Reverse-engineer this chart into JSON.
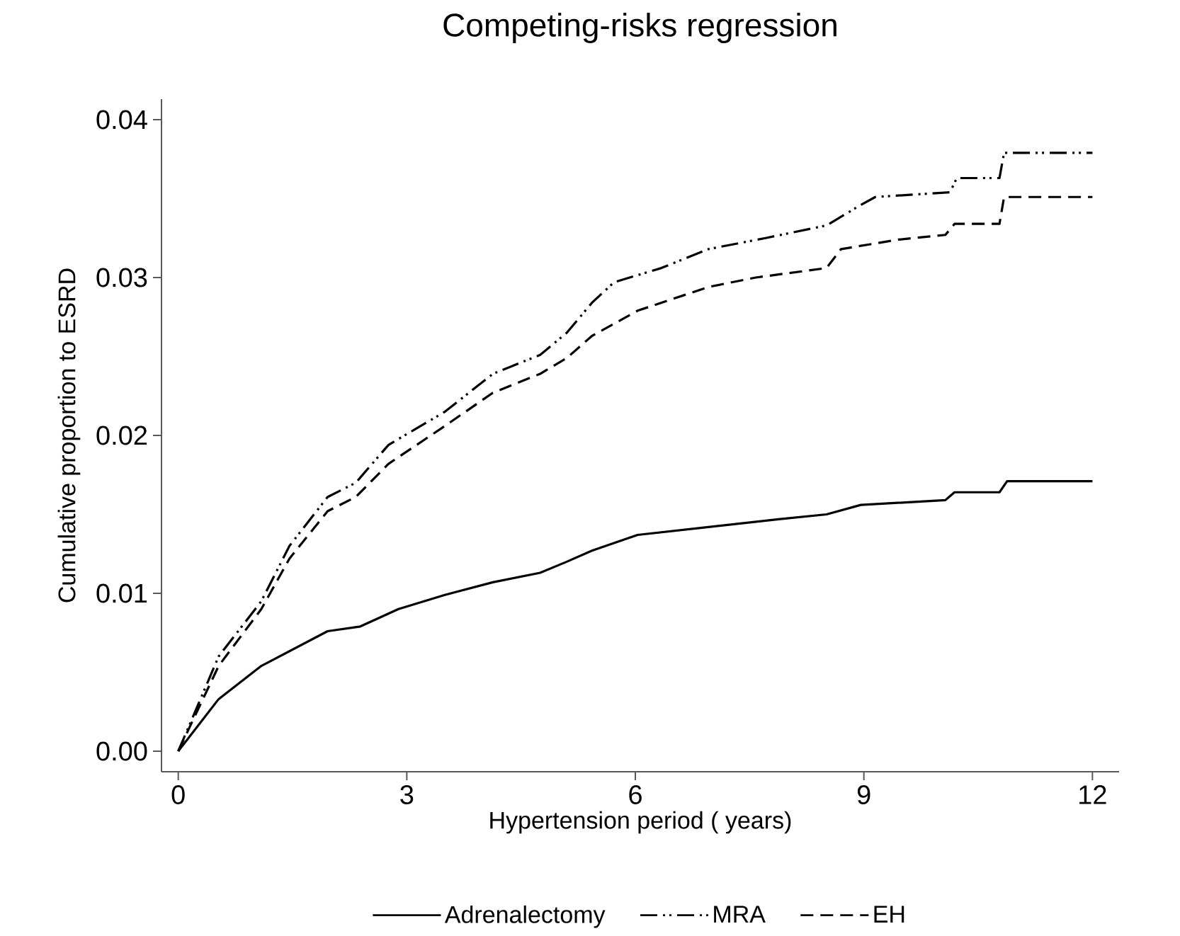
{
  "chart_data": {
    "type": "line",
    "title": "Competing-risks regression",
    "xlabel": "Hypertension period ( years)",
    "ylabel": "Cumulative proportion to ESRD",
    "xlim": [
      -0.22,
      12.35
    ],
    "ylim": [
      -0.0013,
      0.0413
    ],
    "xticks": [
      0,
      3,
      6,
      9,
      12
    ],
    "yticks": [
      {
        "value": 0,
        "label": "0.00"
      },
      {
        "value": 0.01,
        "label": "0.01"
      },
      {
        "value": 0.02,
        "label": "0.02"
      },
      {
        "value": 0.03,
        "label": "0.03"
      },
      {
        "value": 0.04,
        "label": "0.04"
      }
    ],
    "grid": false,
    "legend": "bottom",
    "marker": "none",
    "series": [
      {
        "name": "Adrenalectomy",
        "color": "#000000",
        "line_style": "solid",
        "x": [
          0,
          0.53,
          1.09,
          1.96,
          2.39,
          2.89,
          3.5,
          4.13,
          4.75,
          5.1,
          5.43,
          6.03,
          6.96,
          7.9,
          8.51,
          8.96,
          10.07,
          10.19,
          10.78,
          10.88,
          12
        ],
        "values": [
          0,
          0.0033,
          0.0054,
          0.0076,
          0.0079,
          0.009,
          0.0099,
          0.0107,
          0.0113,
          0.012,
          0.0127,
          0.0137,
          0.0142,
          0.0147,
          0.015,
          0.0156,
          0.0159,
          0.0164,
          0.0164,
          0.0171,
          0.0171
        ]
      },
      {
        "name": "MRA",
        "color": "#000000",
        "line_style": "dashdotdot",
        "x": [
          0,
          0.53,
          1.09,
          1.46,
          1.96,
          2.33,
          2.76,
          3.5,
          4.13,
          4.75,
          5.1,
          5.43,
          5.72,
          6.34,
          6.96,
          7.71,
          8.51,
          8.96,
          9.15,
          10.13,
          10.22,
          10.78,
          10.84,
          12
        ],
        "values": [
          0,
          0.006,
          0.0095,
          0.013,
          0.0161,
          0.017,
          0.0194,
          0.0215,
          0.0239,
          0.0251,
          0.0265,
          0.0284,
          0.0297,
          0.0306,
          0.0318,
          0.0325,
          0.0333,
          0.0346,
          0.0351,
          0.0354,
          0.0363,
          0.0363,
          0.0379,
          0.0379
        ]
      },
      {
        "name": "EH",
        "color": "#000000",
        "line_style": "dashed",
        "x": [
          0,
          0.53,
          1.09,
          1.46,
          1.96,
          2.33,
          2.76,
          3.5,
          4.13,
          4.75,
          5.1,
          5.43,
          6.03,
          6.96,
          7.58,
          8.51,
          8.7,
          9.45,
          10.07,
          10.19,
          10.78,
          10.84,
          12
        ],
        "values": [
          0,
          0.0054,
          0.009,
          0.0122,
          0.0152,
          0.0161,
          0.0182,
          0.0206,
          0.0227,
          0.0239,
          0.0249,
          0.0263,
          0.0279,
          0.0294,
          0.03,
          0.0306,
          0.0318,
          0.0324,
          0.0327,
          0.0334,
          0.0334,
          0.0351,
          0.0351
        ]
      }
    ]
  }
}
